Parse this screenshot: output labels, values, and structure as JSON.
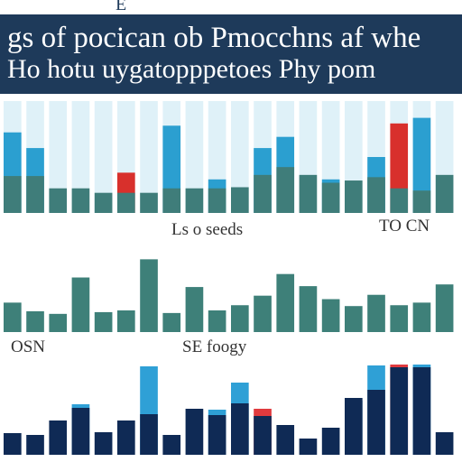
{
  "header": {
    "top_text": "E",
    "line1": "gs of pocican ob Pmocchns af whe",
    "line2": "Ho hotu uygatopppetoes Phy pom"
  },
  "chart_data": [
    {
      "type": "bar",
      "title": "",
      "caption": "Ls o seeds",
      "caption_right": "TO CN",
      "ylim": [
        0,
        100
      ],
      "colors": {
        "bar": "#3f7d7a",
        "bar_top": "#2b9fd0",
        "background": "#dff1f8",
        "accent": "#d8302c"
      },
      "values": [
        33,
        33,
        22,
        22,
        18,
        18,
        18,
        22,
        22,
        22,
        23,
        34,
        41,
        34,
        27,
        29,
        32,
        22,
        20,
        34
      ],
      "top_values": [
        72,
        58,
        0,
        0,
        0,
        36,
        0,
        78,
        0,
        30,
        0,
        58,
        68,
        0,
        30,
        0,
        50,
        80,
        85,
        0
      ]
    },
    {
      "type": "bar",
      "title": "",
      "caption": "OSN",
      "caption_mid": "SE foogy",
      "ylim": [
        0,
        100
      ],
      "colors": {
        "bar": "#3e8079"
      },
      "values": [
        34,
        24,
        21,
        63,
        23,
        25,
        84,
        22,
        52,
        25,
        31,
        42,
        67,
        53,
        38,
        30,
        43,
        31,
        34,
        55
      ]
    },
    {
      "type": "bar",
      "title": "",
      "ylim": [
        0,
        100
      ],
      "colors": {
        "dark": "#0f2a55",
        "light": "#2fa0d6",
        "accent": "#e03a3e"
      },
      "values": [
        24,
        22,
        38,
        52,
        25,
        38,
        45,
        22,
        51,
        44,
        57,
        43,
        33,
        18,
        30,
        63,
        72,
        97,
        97,
        25
      ],
      "top_values": [
        0,
        0,
        0,
        56,
        0,
        0,
        98,
        0,
        0,
        50,
        80,
        51,
        0,
        0,
        0,
        60,
        99,
        100,
        100,
        0
      ]
    }
  ]
}
